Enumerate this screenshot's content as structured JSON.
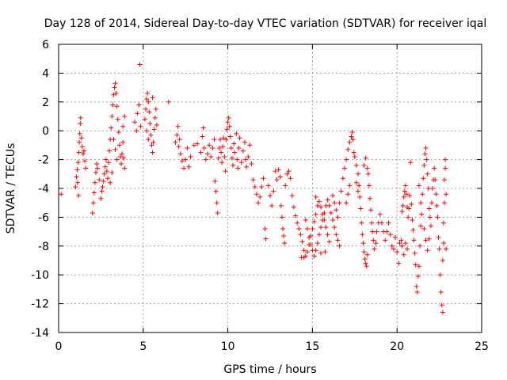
{
  "chart_data": {
    "type": "scatter",
    "title": "Day 128 of 2014, Sidereal Day-to-day VTEC variation (SDTVAR) for receiver iqal",
    "xlabel": "GPS time / hours",
    "ylabel": "SDTVAR / TECUs",
    "xlim": [
      0,
      25
    ],
    "ylim": [
      -14,
      6
    ],
    "xticks": [
      0,
      5,
      10,
      15,
      20,
      25
    ],
    "yticks": [
      -14,
      -12,
      -10,
      -8,
      -6,
      -4,
      -2,
      0,
      2,
      4,
      6
    ],
    "grid": true,
    "marker": "+",
    "color": "#ff0000",
    "points": [
      [
        0.15,
        -4.4
      ],
      [
        1.0,
        -3.9
      ],
      [
        1.05,
        -3.2
      ],
      [
        1.1,
        -2.7
      ],
      [
        1.15,
        -2.2
      ],
      [
        1.2,
        -1.5
      ],
      [
        1.22,
        -0.8
      ],
      [
        1.25,
        -0.2
      ],
      [
        1.28,
        0.5
      ],
      [
        1.3,
        0.9
      ],
      [
        1.18,
        -4.5
      ],
      [
        1.12,
        -3.6
      ],
      [
        1.35,
        -0.5
      ],
      [
        1.4,
        -1.1
      ],
      [
        1.45,
        -1.6
      ],
      [
        1.5,
        -1.4
      ],
      [
        1.55,
        -2.1
      ],
      [
        1.6,
        -2.6
      ],
      [
        2.0,
        -5.7
      ],
      [
        2.05,
        -5.0
      ],
      [
        2.1,
        -4.3
      ],
      [
        2.15,
        -3.6
      ],
      [
        2.2,
        -2.9
      ],
      [
        2.25,
        -2.3
      ],
      [
        2.5,
        -4.7
      ],
      [
        2.55,
        -4.2
      ],
      [
        2.6,
        -3.9
      ],
      [
        2.65,
        -3.5
      ],
      [
        2.7,
        -3.0
      ],
      [
        2.75,
        -2.5
      ],
      [
        2.8,
        -2.0
      ],
      [
        2.85,
        -2.8
      ],
      [
        2.9,
        -3.3
      ],
      [
        2.95,
        -2.2
      ],
      [
        3.0,
        -1.4
      ],
      [
        3.05,
        -0.6
      ],
      [
        3.1,
        0.2
      ],
      [
        3.15,
        1.0
      ],
      [
        3.2,
        1.8
      ],
      [
        3.25,
        2.5
      ],
      [
        3.3,
        3.0
      ],
      [
        3.35,
        3.3
      ],
      [
        3.4,
        2.6
      ],
      [
        3.45,
        1.7
      ],
      [
        3.5,
        0.8
      ],
      [
        3.55,
        -0.1
      ],
      [
        3.6,
        -1.0
      ],
      [
        3.65,
        -1.8
      ],
      [
        3.7,
        -2.3
      ],
      [
        3.75,
        -1.6
      ],
      [
        3.8,
        -0.8
      ],
      [
        3.85,
        -1.9
      ],
      [
        3.9,
        -2.6
      ],
      [
        3.25,
        -0.6
      ],
      [
        3.35,
        -1.3
      ],
      [
        3.45,
        -2.0
      ],
      [
        3.15,
        -2.9
      ],
      [
        3.05,
        -3.6
      ],
      [
        3.8,
        0.3
      ],
      [
        3.9,
        1.0
      ],
      [
        2.3,
        -2.6
      ],
      [
        2.4,
        -3.4
      ],
      [
        4.5,
        0.6
      ],
      [
        4.6,
        0.0
      ],
      [
        4.65,
        1.2
      ],
      [
        4.75,
        1.8
      ],
      [
        4.8,
        4.6
      ],
      [
        4.85,
        0.3
      ],
      [
        5.1,
        0.8
      ],
      [
        5.15,
        1.5
      ],
      [
        5.2,
        2.2
      ],
      [
        5.25,
        2.6
      ],
      [
        5.3,
        2.0
      ],
      [
        5.35,
        1.3
      ],
      [
        5.4,
        0.5
      ],
      [
        5.45,
        -0.3
      ],
      [
        5.5,
        -1.0
      ],
      [
        5.55,
        -1.5
      ],
      [
        5.6,
        -0.8
      ],
      [
        5.65,
        0.1
      ],
      [
        5.7,
        0.9
      ],
      [
        5.75,
        1.5
      ],
      [
        5.2,
        0.0
      ],
      [
        5.3,
        -0.6
      ],
      [
        5.55,
        2.3
      ],
      [
        5.8,
        0.4
      ],
      [
        6.5,
        2.0
      ],
      [
        6.9,
        -0.8
      ],
      [
        7.0,
        -0.3
      ],
      [
        7.05,
        0.3
      ],
      [
        7.1,
        -1.1
      ],
      [
        7.15,
        -0.6
      ],
      [
        7.2,
        -1.6
      ],
      [
        7.3,
        -2.1
      ],
      [
        7.4,
        -2.6
      ],
      [
        7.5,
        -2.0
      ],
      [
        7.6,
        -1.2
      ],
      [
        7.7,
        -2.5
      ],
      [
        7.8,
        -1.8
      ],
      [
        8.0,
        -1.0
      ],
      [
        8.2,
        -0.9
      ],
      [
        8.4,
        -1.5
      ],
      [
        8.5,
        -0.4
      ],
      [
        8.55,
        0.2
      ],
      [
        8.6,
        -1.2
      ],
      [
        8.7,
        -2.0
      ],
      [
        8.8,
        -1.6
      ],
      [
        8.9,
        -1.0
      ],
      [
        9.0,
        -1.8
      ],
      [
        9.1,
        -1.2
      ],
      [
        9.2,
        -0.6
      ],
      [
        9.25,
        -3.5
      ],
      [
        9.3,
        -4.2
      ],
      [
        9.35,
        -5.0
      ],
      [
        9.4,
        -5.7
      ],
      [
        9.45,
        -1.9
      ],
      [
        9.5,
        -1.2
      ],
      [
        9.55,
        -0.6
      ],
      [
        9.6,
        -1.5
      ],
      [
        9.65,
        -2.2
      ],
      [
        9.7,
        -1.1
      ],
      [
        9.75,
        -0.5
      ],
      [
        9.8,
        -1.8
      ],
      [
        9.85,
        -2.8
      ],
      [
        9.9,
        -0.6
      ],
      [
        9.95,
        0.1
      ],
      [
        10.0,
        0.6
      ],
      [
        10.05,
        0.9
      ],
      [
        10.1,
        0.3
      ],
      [
        10.15,
        -0.4
      ],
      [
        10.2,
        -1.2
      ],
      [
        10.25,
        -1.9
      ],
      [
        10.3,
        -2.4
      ],
      [
        10.35,
        -0.9
      ],
      [
        10.4,
        -1.5
      ],
      [
        10.5,
        -0.2
      ],
      [
        10.55,
        -2.0
      ],
      [
        10.6,
        -2.6
      ],
      [
        10.65,
        -1.2
      ],
      [
        10.7,
        -0.5
      ],
      [
        10.8,
        -2.2
      ],
      [
        10.9,
        -1.4
      ],
      [
        11.0,
        -0.8
      ],
      [
        11.05,
        -2.0
      ],
      [
        11.1,
        -2.5
      ],
      [
        11.2,
        -1.8
      ],
      [
        11.3,
        -1.0
      ],
      [
        11.4,
        -2.3
      ],
      [
        11.5,
        -3.4
      ],
      [
        11.6,
        -3.9
      ],
      [
        11.7,
        -4.4
      ],
      [
        11.8,
        -5.0
      ],
      [
        11.9,
        -4.6
      ],
      [
        12.0,
        -3.9
      ],
      [
        12.1,
        -3.3
      ],
      [
        12.2,
        -6.8
      ],
      [
        12.25,
        -7.5
      ],
      [
        12.4,
        -3.8
      ],
      [
        12.5,
        -4.5
      ],
      [
        12.6,
        -5.2
      ],
      [
        12.7,
        -4.2
      ],
      [
        12.8,
        -2.8
      ],
      [
        12.9,
        -3.4
      ],
      [
        13.0,
        -2.7
      ],
      [
        13.1,
        -3.2
      ],
      [
        13.15,
        -5.2
      ],
      [
        13.2,
        -6.0
      ],
      [
        13.25,
        -6.8
      ],
      [
        13.3,
        -7.3
      ],
      [
        13.35,
        -7.8
      ],
      [
        13.4,
        -3.8
      ],
      [
        13.5,
        -3.0
      ],
      [
        13.6,
        -2.8
      ],
      [
        13.7,
        -3.3
      ],
      [
        13.8,
        -4.5
      ],
      [
        13.9,
        -5.3
      ],
      [
        14.0,
        -5.9
      ],
      [
        14.1,
        -6.4
      ],
      [
        14.2,
        -6.8
      ],
      [
        14.3,
        -7.2
      ],
      [
        14.4,
        -7.7
      ],
      [
        14.5,
        -8.3
      ],
      [
        14.6,
        -8.7
      ],
      [
        14.7,
        -8.4
      ],
      [
        14.8,
        -7.9
      ],
      [
        14.9,
        -7.3
      ],
      [
        15.0,
        -6.8
      ],
      [
        15.1,
        -6.3
      ],
      [
        15.2,
        -5.8
      ],
      [
        15.3,
        -5.2
      ],
      [
        15.4,
        -4.9
      ],
      [
        15.5,
        -5.3
      ],
      [
        15.6,
        -5.8
      ],
      [
        15.7,
        -6.2
      ],
      [
        15.8,
        -6.7
      ],
      [
        15.9,
        -7.2
      ],
      [
        16.0,
        -7.7
      ],
      [
        14.35,
        -8.8
      ],
      [
        14.5,
        -8.8
      ],
      [
        14.6,
        -6.2
      ],
      [
        14.7,
        -6.8
      ],
      [
        14.8,
        -7.4
      ],
      [
        14.9,
        -7.9
      ],
      [
        15.0,
        -8.3
      ],
      [
        15.1,
        -8.7
      ],
      [
        15.2,
        -8.3
      ],
      [
        15.3,
        -7.8
      ],
      [
        15.4,
        -7.2
      ],
      [
        15.5,
        -6.7
      ],
      [
        15.6,
        -6.2
      ],
      [
        15.7,
        -5.7
      ],
      [
        15.8,
        -5.2
      ],
      [
        15.9,
        -4.8
      ],
      [
        16.0,
        -5.2
      ],
      [
        16.1,
        -5.7
      ],
      [
        16.2,
        -6.2
      ],
      [
        16.3,
        -6.7
      ],
      [
        16.4,
        -7.2
      ],
      [
        16.5,
        -7.6
      ],
      [
        16.6,
        -8.0
      ],
      [
        15.2,
        -4.6
      ],
      [
        15.5,
        -8.5
      ],
      [
        15.75,
        -8.4
      ],
      [
        16.2,
        -4.5
      ],
      [
        16.3,
        -5.0
      ],
      [
        16.4,
        -5.5
      ],
      [
        16.5,
        -6.0
      ],
      [
        16.6,
        -5.0
      ],
      [
        16.7,
        -4.2
      ],
      [
        16.8,
        -3.3
      ],
      [
        16.9,
        -2.6
      ],
      [
        17.0,
        -2.0
      ],
      [
        17.1,
        -1.3
      ],
      [
        17.2,
        -0.8
      ],
      [
        17.3,
        -0.4
      ],
      [
        17.35,
        -0.1
      ],
      [
        17.4,
        -0.6
      ],
      [
        17.45,
        -1.5
      ],
      [
        17.2,
        -3.8
      ],
      [
        17.1,
        -4.4
      ],
      [
        17.0,
        -5.0
      ],
      [
        17.5,
        -1.8
      ],
      [
        17.6,
        -2.4
      ],
      [
        17.7,
        -3.0
      ],
      [
        17.75,
        -3.8
      ],
      [
        17.8,
        -4.6
      ],
      [
        17.85,
        -5.4
      ],
      [
        17.9,
        -6.4
      ],
      [
        17.95,
        -7.2
      ],
      [
        18.0,
        -7.8
      ],
      [
        18.05,
        -8.4
      ],
      [
        18.1,
        -8.9
      ],
      [
        18.15,
        -9.2
      ],
      [
        18.2,
        -9.4
      ],
      [
        18.25,
        -8.6
      ],
      [
        17.6,
        -3.6
      ],
      [
        17.7,
        -4.2
      ],
      [
        18.05,
        -2.4
      ],
      [
        18.15,
        -1.9
      ],
      [
        18.25,
        -2.6
      ],
      [
        18.3,
        -3.0
      ],
      [
        18.35,
        -3.8
      ],
      [
        18.4,
        -4.7
      ],
      [
        18.45,
        -5.5
      ],
      [
        18.5,
        -6.4
      ],
      [
        18.55,
        -7.0
      ],
      [
        18.6,
        -7.6
      ],
      [
        18.65,
        -8.2
      ],
      [
        18.75,
        -7.8
      ],
      [
        18.8,
        -7.0
      ],
      [
        18.9,
        -6.4
      ],
      [
        19.0,
        -5.8
      ],
      [
        19.1,
        -6.4
      ],
      [
        19.2,
        -7.0
      ],
      [
        19.3,
        -7.6
      ],
      [
        19.4,
        -7.0
      ],
      [
        19.5,
        -6.4
      ],
      [
        19.6,
        -7.2
      ],
      [
        19.7,
        -8.0
      ],
      [
        19.8,
        -8.2
      ],
      [
        19.9,
        -7.4
      ],
      [
        20.0,
        -8.4
      ],
      [
        20.1,
        -9.2
      ],
      [
        20.15,
        -7.8
      ],
      [
        20.25,
        -7.6
      ],
      [
        20.3,
        -8.0
      ],
      [
        20.4,
        -8.6
      ],
      [
        20.5,
        -7.8
      ],
      [
        20.6,
        -8.2
      ],
      [
        20.3,
        -5.6
      ],
      [
        20.35,
        -5.2
      ],
      [
        20.4,
        -4.6
      ],
      [
        20.45,
        -4.2
      ],
      [
        20.5,
        -3.8
      ],
      [
        20.55,
        -4.4
      ],
      [
        20.6,
        -5.3
      ],
      [
        20.65,
        -6.0
      ],
      [
        20.7,
        -5.4
      ],
      [
        20.75,
        -4.5
      ],
      [
        20.8,
        -2.2
      ],
      [
        20.85,
        -5.1
      ],
      [
        20.9,
        -6.2
      ],
      [
        20.95,
        -6.9
      ],
      [
        21.0,
        -7.6
      ],
      [
        21.05,
        -8.5
      ],
      [
        21.1,
        -9.3
      ],
      [
        21.15,
        -10.8
      ],
      [
        21.2,
        -11.2
      ],
      [
        21.25,
        -10.1
      ],
      [
        21.3,
        -9.4
      ],
      [
        21.35,
        -8.0
      ],
      [
        21.4,
        -6.6
      ],
      [
        21.45,
        -5.8
      ],
      [
        21.5,
        -4.4
      ],
      [
        21.55,
        -3.3
      ],
      [
        21.6,
        -2.4
      ],
      [
        21.65,
        -1.6
      ],
      [
        21.7,
        -1.2
      ],
      [
        21.75,
        -2.0
      ],
      [
        21.8,
        -3.0
      ],
      [
        21.85,
        -4.0
      ],
      [
        21.9,
        -5.4
      ],
      [
        21.95,
        -6.0
      ],
      [
        21.3,
        -3.8
      ],
      [
        21.4,
        -5.0
      ],
      [
        21.6,
        -6.8
      ],
      [
        21.7,
        -7.6
      ],
      [
        21.8,
        -8.3
      ],
      [
        21.9,
        -7.5
      ],
      [
        22.0,
        -6.6
      ],
      [
        22.05,
        -5.0
      ],
      [
        22.1,
        -4.0
      ],
      [
        22.15,
        -3.4
      ],
      [
        22.2,
        -2.6
      ],
      [
        22.25,
        -3.4
      ],
      [
        22.3,
        -4.4
      ],
      [
        22.35,
        -5.2
      ],
      [
        22.4,
        -6.0
      ],
      [
        22.45,
        -7.4
      ],
      [
        22.5,
        -8.2
      ],
      [
        22.55,
        -10.0
      ],
      [
        22.6,
        -11.2
      ],
      [
        22.65,
        -12.1
      ],
      [
        22.7,
        -12.6
      ],
      [
        22.7,
        -9.0
      ],
      [
        22.75,
        -7.8
      ],
      [
        22.75,
        -6.4
      ],
      [
        22.8,
        -5.0
      ],
      [
        22.8,
        -3.4
      ],
      [
        22.85,
        -2.6
      ],
      [
        22.85,
        -2.0
      ],
      [
        22.9,
        -4.4
      ],
      [
        22.9,
        -8.2
      ]
    ]
  }
}
